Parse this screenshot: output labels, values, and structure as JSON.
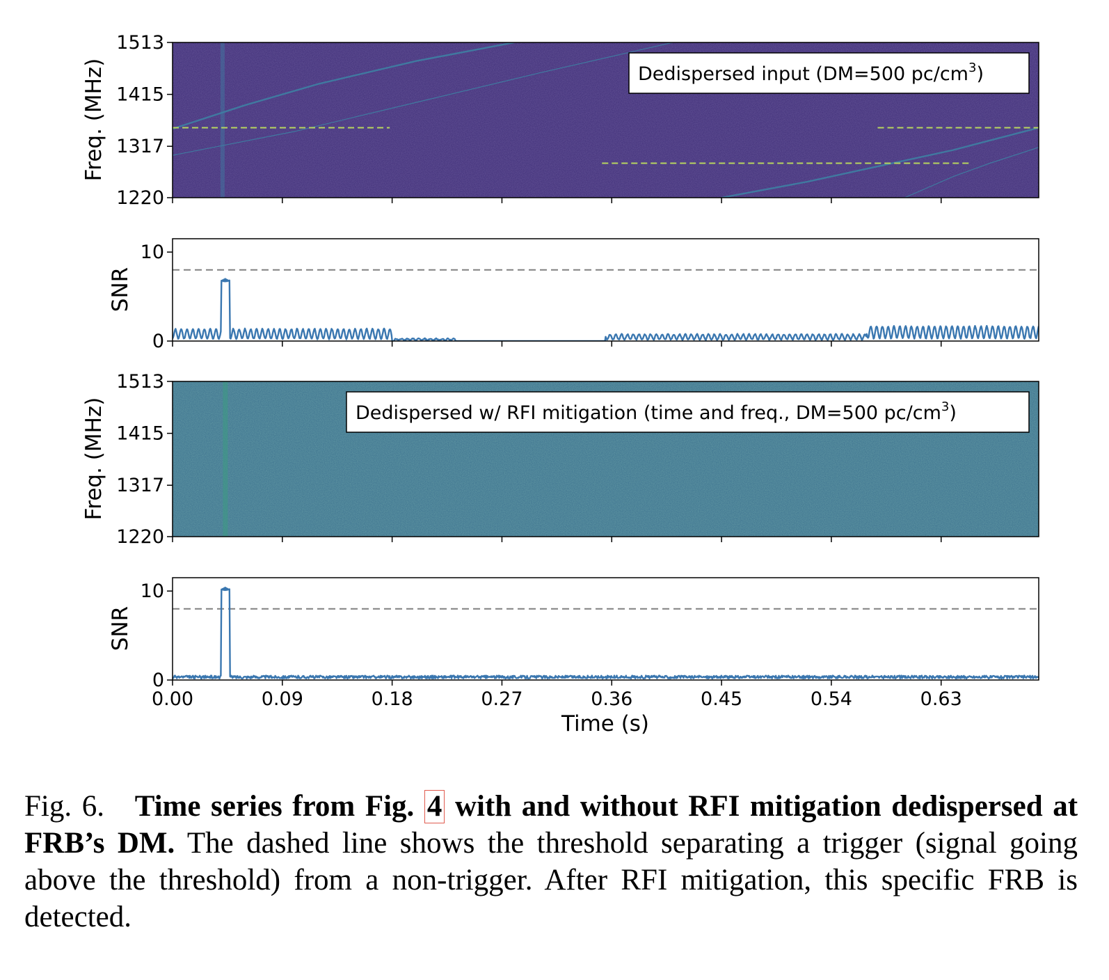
{
  "chart_data": [
    {
      "type": "heatmap",
      "panel": "top-spectrogram",
      "legend": "Dedispersed input (DM=500 pc/cm",
      "legend_sup": "3",
      "legend_close": ")",
      "ylabel": "Freq. (MHz)",
      "yticks": [
        "1513",
        "1415",
        "1317",
        "1220"
      ],
      "ylim": [
        1220,
        1513
      ],
      "xlim": [
        0,
        0.71
      ],
      "xticks": [
        0,
        0.09,
        0.18,
        0.27,
        0.36,
        0.45,
        0.54,
        0.63
      ],
      "background_color": "#3f2e78",
      "signal_color": "#3e7fa3",
      "rfi_color": "#b8d65e",
      "burst_time": 0.041,
      "dispersed_sweeps": [
        {
          "x": [
            0.0,
            0.06,
            0.12,
            0.2,
            0.28
          ],
          "y": [
            1350,
            1395,
            1435,
            1478,
            1513
          ]
        },
        {
          "x": [
            0.0,
            0.1,
            0.2,
            0.3,
            0.41
          ],
          "y": [
            1300,
            1345,
            1400,
            1455,
            1513
          ]
        },
        {
          "x": [
            0.45,
            0.52,
            0.58,
            0.64,
            0.71
          ],
          "y": [
            1220,
            1250,
            1280,
            1310,
            1352
          ]
        },
        {
          "x": [
            0.6,
            0.64,
            0.67,
            0.71
          ],
          "y": [
            1220,
            1260,
            1285,
            1315
          ]
        }
      ],
      "rfi_segments": [
        {
          "x": [
            0.0,
            0.178
          ],
          "y": 1352
        },
        {
          "x": [
            0.578,
            0.71
          ],
          "y": 1352
        },
        {
          "x": [
            0.352,
            0.655
          ],
          "y": 1285
        }
      ]
    },
    {
      "type": "line",
      "panel": "top-snr",
      "ylabel": "SNR",
      "yticks": [
        "0",
        "10"
      ],
      "ylim": [
        0,
        11.5
      ],
      "xlim": [
        0,
        0.71
      ],
      "threshold": 8,
      "line_color": "#3a77b0",
      "burst": {
        "t0": 0.04,
        "t1": 0.047,
        "peak": 7.0
      },
      "segments": [
        {
          "x0": 0.0,
          "x1": 0.18,
          "amp": 1.3
        },
        {
          "x0": 0.182,
          "x1": 0.232,
          "amp": 0.2
        },
        {
          "x0": 0.355,
          "x1": 0.569,
          "amp": 0.7
        },
        {
          "x0": 0.569,
          "x1": 0.71,
          "amp": 1.6
        }
      ]
    },
    {
      "type": "heatmap",
      "panel": "bottom-spectrogram",
      "legend": "Dedispersed w/ RFI mitigation (time and freq., DM=500 pc/cm",
      "legend_sup": "3",
      "legend_close": ")",
      "ylabel": "Freq. (MHz)",
      "yticks": [
        "1513",
        "1415",
        "1317",
        "1220"
      ],
      "ylim": [
        1220,
        1513
      ],
      "xlim": [
        0,
        0.71
      ],
      "background_color": "#3a6f8e",
      "signal_color": "#3e9a84",
      "burst_time": 0.043
    },
    {
      "type": "line",
      "panel": "bottom-snr",
      "ylabel": "SNR",
      "yticks": [
        "0",
        "10"
      ],
      "ylim": [
        0,
        11.5
      ],
      "xlim": [
        0,
        0.71
      ],
      "threshold": 8,
      "line_color": "#3a77b0",
      "burst": {
        "t0": 0.04,
        "t1": 0.047,
        "peak": 10.4
      },
      "noise_amp": 0.5,
      "xlabel": "Time (s)",
      "xticks": [
        "0.00",
        "0.09",
        "0.18",
        "0.27",
        "0.36",
        "0.45",
        "0.54",
        "0.63"
      ]
    }
  ],
  "caption": {
    "fig_label": "Fig. 6.",
    "bold_a": "Time series from Fig.",
    "ref": "4",
    "bold_b": "with and without RFI mitigation dedispersed at FRB’s DM.",
    "body": "The dashed line shows the threshold separating a trigger (signal going above the threshold) from a non-trigger. After RFI mitigation, this specific FRB is detected."
  }
}
